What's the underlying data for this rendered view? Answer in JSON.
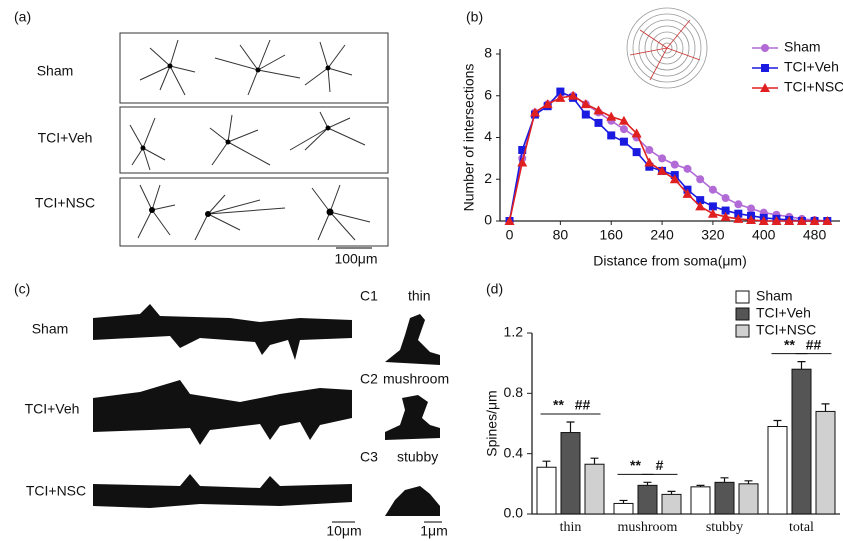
{
  "panel_a": {
    "label": "(a)",
    "rows": [
      "Sham",
      "TCI+Veh",
      "TCI+NSC"
    ],
    "scale": "100μm"
  },
  "panel_b": {
    "label": "(b)"
  },
  "panel_c": {
    "label": "(c)",
    "rows": [
      "Sham",
      "TCI+Veh",
      "TCI+NSC"
    ],
    "types": [
      {
        "id": "C1",
        "name": "thin"
      },
      {
        "id": "C2",
        "name": "mushroom"
      },
      {
        "id": "C3",
        "name": "stubby"
      }
    ],
    "scale_main": "10μm",
    "scale_inset": "1μm"
  },
  "panel_d": {
    "label": "(d)"
  },
  "chart_data": [
    {
      "type": "line",
      "x_label": "Distance from soma(μm)",
      "y_label": "Number of intersections",
      "x": [
        0,
        20,
        40,
        60,
        80,
        100,
        120,
        140,
        160,
        180,
        200,
        220,
        240,
        260,
        280,
        300,
        320,
        340,
        360,
        380,
        400,
        420,
        440,
        460,
        480,
        500
      ],
      "series": [
        {
          "name": "Sham",
          "color": "#b26ad6",
          "marker": "circle",
          "values": [
            0,
            3.0,
            5.2,
            5.6,
            6.1,
            6.0,
            5.6,
            5.2,
            4.8,
            4.4,
            4.0,
            3.4,
            3.0,
            2.7,
            2.5,
            2.0,
            1.5,
            1.1,
            0.8,
            0.6,
            0.4,
            0.3,
            0.2,
            0.1,
            0.05,
            0
          ]
        },
        {
          "name": "TCI+Veh",
          "color": "#1a1ae0",
          "marker": "square",
          "values": [
            0,
            3.4,
            5.1,
            5.5,
            6.2,
            5.9,
            5.1,
            4.7,
            4.1,
            3.8,
            3.3,
            2.6,
            2.4,
            2.2,
            1.5,
            1.0,
            0.7,
            0.5,
            0.35,
            0.25,
            0.15,
            0.1,
            0.05,
            0,
            0,
            0
          ]
        },
        {
          "name": "TCI+NSC",
          "color": "#e02020",
          "marker": "triangle",
          "values": [
            0,
            2.8,
            5.2,
            5.6,
            5.9,
            6.0,
            5.6,
            5.3,
            5.0,
            4.8,
            4.2,
            2.8,
            2.4,
            2.0,
            1.3,
            0.7,
            0.35,
            0.2,
            0.1,
            0.05,
            0,
            0,
            0,
            0,
            0,
            0
          ]
        }
      ],
      "xlim": [
        -15,
        520
      ],
      "xticks": [
        0,
        80,
        160,
        240,
        320,
        400,
        480
      ],
      "ylim": [
        0,
        8
      ],
      "yticks": [
        0,
        2,
        4,
        6,
        8
      ]
    },
    {
      "type": "bar",
      "y_label": "Spines/μm",
      "categories": [
        "thin",
        "mushroom",
        "stubby",
        "total"
      ],
      "series": [
        {
          "name": "Sham",
          "color": "#ffffff",
          "values": [
            0.31,
            0.07,
            0.18,
            0.58
          ],
          "errors": [
            0.04,
            0.02,
            0.01,
            0.04
          ]
        },
        {
          "name": "TCI+Veh",
          "color": "#555555",
          "values": [
            0.54,
            0.19,
            0.21,
            0.96
          ],
          "errors": [
            0.07,
            0.02,
            0.03,
            0.05
          ]
        },
        {
          "name": "TCI+NSC",
          "color": "#d0d0d0",
          "values": [
            0.33,
            0.13,
            0.2,
            0.68
          ],
          "errors": [
            0.04,
            0.02,
            0.02,
            0.05
          ]
        }
      ],
      "significance": {
        "thin": [
          "**",
          "##"
        ],
        "mushroom": [
          "**",
          "#"
        ],
        "total": [
          "**",
          "##"
        ]
      },
      "ylim": [
        0,
        1.2
      ],
      "yticks": [
        {
          "value": 0,
          "label": "0.0"
        },
        {
          "value": 0.4,
          "label": "0.4"
        },
        {
          "value": 0.8,
          "label": "0.8"
        },
        {
          "value": 1.2,
          "label": "1.2"
        }
      ]
    }
  ]
}
